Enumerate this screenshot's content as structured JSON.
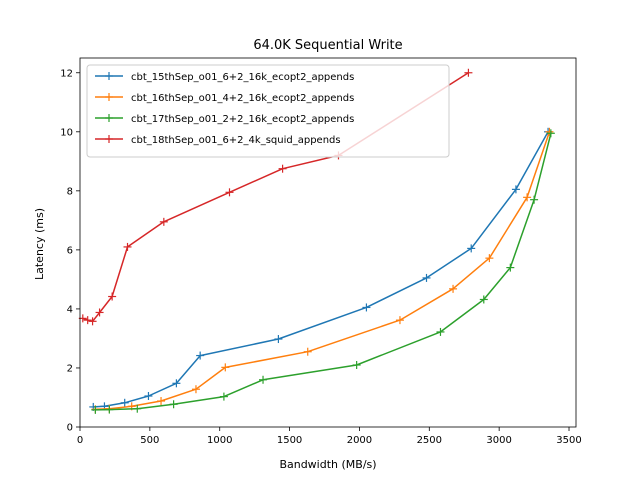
{
  "chart_data": {
    "type": "line",
    "title": "64.0K  Sequential Write",
    "xlabel": "Bandwidth (MB/s)",
    "ylabel": "Latency (ms)",
    "xlim": [
      0,
      3550
    ],
    "ylim": [
      0,
      12.5
    ],
    "xticks": [
      0,
      500,
      1000,
      1500,
      2000,
      2500,
      3000,
      3500
    ],
    "yticks": [
      0,
      2,
      4,
      6,
      8,
      10,
      12
    ],
    "grid": false,
    "legend_position": "upper left",
    "marker": "+",
    "series": [
      {
        "name": "cbt_15thSep_o01_6+2_16k_ecopt2_appends",
        "color": "#1f77b4",
        "x": [
          95,
          175,
          320,
          490,
          690,
          860,
          1420,
          2050,
          2480,
          2800,
          3120,
          3350
        ],
        "y": [
          0.68,
          0.7,
          0.82,
          1.05,
          1.48,
          2.42,
          2.98,
          4.05,
          5.05,
          6.05,
          8.05,
          10.0
        ]
      },
      {
        "name": "cbt_16thSep_o01_4+2_16k_ecopt2_appends",
        "color": "#ff7f0e",
        "x": [
          110,
          210,
          370,
          580,
          830,
          1040,
          1630,
          2290,
          2670,
          2930,
          3200,
          3360
        ],
        "y": [
          0.6,
          0.62,
          0.7,
          0.88,
          1.28,
          2.02,
          2.55,
          3.62,
          4.68,
          5.72,
          7.78,
          10.0
        ]
      },
      {
        "name": "cbt_17thSep_o01_2+2_16k_ecopt2_appends",
        "color": "#2ca02c",
        "x": [
          110,
          210,
          410,
          670,
          1030,
          1310,
          1980,
          2580,
          2890,
          3080,
          3250,
          3370
        ],
        "y": [
          0.58,
          0.59,
          0.62,
          0.77,
          1.03,
          1.6,
          2.1,
          3.22,
          4.32,
          5.4,
          7.7,
          9.95
        ]
      },
      {
        "name": "cbt_18thSep_o01_6+2_4k_squid_appends",
        "color": "#d62728",
        "x": [
          20,
          55,
          90,
          140,
          230,
          340,
          600,
          1070,
          1450,
          1850,
          2780
        ],
        "y": [
          3.68,
          3.62,
          3.58,
          3.88,
          4.42,
          6.1,
          6.95,
          7.95,
          8.75,
          9.2,
          12.0
        ]
      }
    ]
  }
}
